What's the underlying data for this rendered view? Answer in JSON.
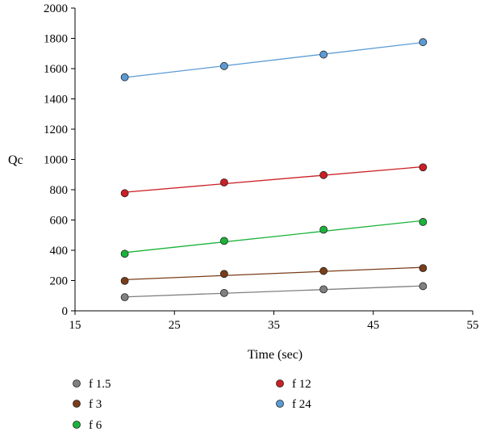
{
  "chart_data": {
    "type": "scatter",
    "title": "",
    "xlabel": "Time (sec)",
    "ylabel": "Qc",
    "xlim": [
      15,
      55
    ],
    "ylim": [
      0,
      2000
    ],
    "x_ticks": [
      15,
      25,
      35,
      45,
      55
    ],
    "y_ticks": [
      0,
      200,
      400,
      600,
      800,
      1000,
      1200,
      1400,
      1600,
      1800,
      2000
    ],
    "x_tick_labels": [
      "15",
      "25",
      "35",
      "45",
      "55"
    ],
    "y_tick_labels": [
      "0",
      "200",
      "400",
      "600",
      "800",
      "1000",
      "1200",
      "1400",
      "1600",
      "1800",
      "2000"
    ],
    "grid": false,
    "legend_position": "bottom",
    "trendlines": "linear",
    "series": [
      {
        "name": "f 1.5",
        "color": "#808080",
        "x": [
          20,
          30,
          40,
          50
        ],
        "y": [
          90,
          118,
          142,
          163
        ]
      },
      {
        "name": "f 3",
        "color": "#7a3d18",
        "x": [
          20,
          30,
          40,
          50
        ],
        "y": [
          198,
          244,
          263,
          282
        ]
      },
      {
        "name": "f 6",
        "color": "#1ab33a",
        "x": [
          20,
          30,
          40,
          50
        ],
        "y": [
          377,
          462,
          536,
          587
        ]
      },
      {
        "name": "f 12",
        "color": "#cc1f25",
        "x": [
          20,
          30,
          40,
          50
        ],
        "y": [
          777,
          848,
          897,
          948
        ]
      },
      {
        "name": "f 24",
        "color": "#5b9bd5",
        "x": [
          20,
          30,
          40,
          50
        ],
        "y": [
          1543,
          1617,
          1693,
          1775
        ]
      }
    ]
  }
}
